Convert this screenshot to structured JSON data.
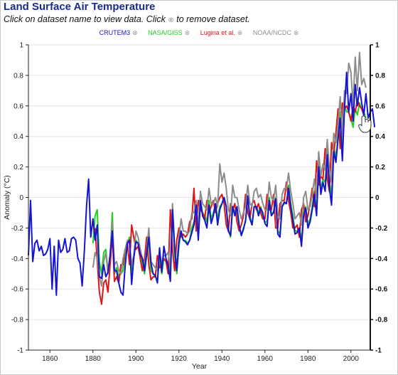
{
  "page": {
    "title": "Land Surface Air Temperature",
    "instruction_before": "Click on dataset name to view data. Click",
    "instruction_icon": "remove-dataset-icon",
    "instruction_after": "to remove dataset.",
    "remove_glyph": "⊗"
  },
  "chart_data": {
    "type": "line",
    "title": "",
    "xlabel": "Year",
    "ylabel": "Anomaly (°C)",
    "xlim": [
      1850,
      2009
    ],
    "ylim": [
      -1,
      1
    ],
    "x_ticks": [
      1860,
      1880,
      1900,
      1920,
      1940,
      1960,
      1980,
      2000
    ],
    "y_ticks_left": [
      "-1",
      "-0.8",
      "-0.6",
      "-0.4",
      "-0.2",
      "0",
      "0.2",
      "0.4",
      "0.6",
      "0.8",
      "1"
    ],
    "y_ticks_right": [
      "-1",
      "-0.8",
      "-0.6",
      "-0.4",
      "-0.2",
      "0",
      "0.2",
      "0.4",
      "0.6",
      "0.8",
      "1"
    ],
    "y_tick_values": [
      -1,
      -0.8,
      -0.6,
      -0.4,
      -0.2,
      0,
      0.2,
      0.4,
      0.6,
      0.8,
      1
    ],
    "grid": true,
    "legend_position": "top-center",
    "series": [
      {
        "name": "CRUTEM3",
        "color": "#1414d2",
        "start": 1850,
        "values": [
          -0.38,
          -0.02,
          -0.42,
          -0.3,
          -0.28,
          -0.35,
          -0.32,
          -0.38,
          -0.37,
          -0.34,
          -0.27,
          -0.6,
          -0.32,
          -0.64,
          -0.28,
          -0.36,
          -0.34,
          -0.27,
          -0.36,
          -0.35,
          -0.27,
          -0.26,
          -0.28,
          -0.4,
          -0.43,
          -0.58,
          -0.35,
          -0.06,
          0.12,
          -0.26,
          -0.14,
          -0.28,
          -0.18,
          -0.52,
          -0.53,
          -0.44,
          -0.52,
          -0.49,
          -0.38,
          -0.22,
          -0.48,
          -0.48,
          -0.56,
          -0.62,
          -0.64,
          -0.45,
          -0.3,
          -0.28,
          -0.57,
          -0.4,
          -0.29,
          -0.3,
          -0.37,
          -0.4,
          -0.48,
          -0.36,
          -0.26,
          -0.43,
          -0.5,
          -0.51,
          -0.56,
          -0.33,
          -0.49,
          -0.32,
          -0.4,
          -0.45,
          -0.55,
          -0.08,
          -0.33,
          -0.48,
          -0.29,
          -0.22,
          -0.28,
          -0.29,
          -0.31,
          -0.28,
          -0.23,
          -0.18,
          -0.05,
          -0.28,
          -0.02,
          -0.12,
          -0.15,
          -0.2,
          -0.05,
          -0.17,
          -0.12,
          -0.04,
          -0.18,
          -0.08,
          -0.04,
          0.0,
          -0.06,
          -0.22,
          -0.25,
          -0.06,
          -0.12,
          -0.06,
          -0.18,
          -0.25,
          -0.21,
          -0.15,
          0.01,
          -0.14,
          -0.18,
          -0.06,
          -0.06,
          -0.12,
          -0.07,
          -0.1,
          -0.17,
          -0.19,
          -0.02,
          -0.12,
          -0.1,
          -0.01,
          -0.24,
          -0.26,
          -0.06,
          -0.03,
          -0.04,
          0.06,
          -0.06,
          -0.15,
          -0.24,
          -0.23,
          -0.2,
          -0.32,
          -0.12,
          -0.07,
          -0.2,
          -0.16,
          -0.08,
          0.02,
          -0.12,
          0.2,
          0.02,
          0.1,
          0.04,
          0.28,
          0.06,
          -0.05,
          0.3,
          0.23,
          0.38,
          0.52,
          0.24,
          0.58,
          0.82,
          0.56,
          0.68,
          0.5,
          0.74,
          0.6,
          0.72,
          0.62,
          0.54,
          0.68,
          0.52,
          0.56,
          0.58,
          0.46
        ]
      },
      {
        "name": "NASA/GISS",
        "color": "#1fd01f",
        "start": 1880,
        "values": [
          -0.3,
          -0.12,
          -0.08,
          -0.42,
          -0.5,
          -0.36,
          -0.34,
          -0.48,
          -0.38,
          -0.1,
          -0.5,
          -0.46,
          -0.52,
          -0.5,
          -0.48,
          -0.36,
          -0.3,
          -0.26,
          -0.48,
          -0.4,
          -0.28,
          -0.3,
          -0.38,
          -0.44,
          -0.5,
          -0.38,
          -0.28,
          -0.48,
          -0.5,
          -0.52,
          -0.54,
          -0.4,
          -0.5,
          -0.4,
          -0.42,
          -0.42,
          -0.53,
          -0.1,
          -0.38,
          -0.5,
          -0.32,
          -0.22,
          -0.28,
          -0.28,
          -0.3,
          -0.28,
          -0.2,
          -0.16,
          -0.08,
          -0.24,
          -0.02,
          -0.1,
          -0.12,
          -0.16,
          -0.02,
          -0.14,
          -0.1,
          -0.04,
          -0.14,
          -0.06,
          -0.04,
          0.0,
          -0.06,
          -0.2,
          -0.26,
          -0.06,
          -0.1,
          -0.08,
          -0.2,
          -0.24,
          -0.2,
          -0.16,
          0.0,
          -0.12,
          -0.18,
          -0.06,
          -0.06,
          -0.1,
          -0.06,
          -0.12,
          -0.16,
          -0.16,
          0.0,
          -0.1,
          -0.1,
          0.0,
          -0.22,
          -0.24,
          -0.06,
          -0.04,
          -0.04,
          0.08,
          -0.04,
          -0.12,
          -0.22,
          -0.22,
          -0.2,
          -0.28,
          -0.1,
          -0.06,
          -0.18,
          -0.14,
          -0.06,
          0.04,
          -0.08,
          0.22,
          0.06,
          0.12,
          0.1,
          0.3,
          0.1,
          0.02,
          0.34,
          0.26,
          0.4,
          0.56,
          0.3,
          0.6,
          0.56,
          0.56,
          0.52,
          0.46,
          0.58,
          0.54,
          0.62,
          0.58,
          0.56,
          0.52
        ]
      },
      {
        "name": "Lugina et al.",
        "color": "#e01515",
        "start": 1881,
        "values": [
          -0.2,
          -0.42,
          -0.62,
          -0.7,
          -0.56,
          -0.54,
          -0.62,
          -0.44,
          -0.24,
          -0.55,
          -0.52,
          -0.56,
          -0.44,
          -0.44,
          -0.34,
          -0.3,
          -0.44,
          -0.18,
          -0.26,
          -0.34,
          -0.32,
          -0.4,
          -0.48,
          -0.4,
          -0.26,
          -0.44,
          -0.54,
          -0.52,
          -0.52,
          -0.38,
          -0.46,
          -0.44,
          -0.4,
          -0.42,
          -0.5,
          -0.08,
          -0.34,
          -0.48,
          -0.28,
          -0.2,
          -0.26,
          -0.24,
          -0.26,
          -0.24,
          -0.16,
          -0.14,
          0.06,
          -0.22,
          -0.02,
          -0.08,
          -0.1,
          -0.14,
          -0.02,
          -0.1,
          -0.06,
          -0.02,
          -0.1,
          -0.04,
          0.0,
          0.02,
          -0.04,
          -0.18,
          -0.22,
          -0.04,
          -0.08,
          -0.04,
          -0.16,
          -0.22,
          -0.18,
          -0.12,
          0.02,
          -0.1,
          -0.14,
          -0.04,
          -0.02,
          -0.08,
          -0.04,
          -0.1,
          -0.14,
          -0.14,
          0.02,
          -0.08,
          -0.08,
          0.02,
          -0.2,
          -0.2,
          -0.04,
          -0.02,
          -0.02,
          0.1,
          -0.02,
          -0.1,
          -0.2,
          -0.2,
          -0.18,
          -0.26,
          -0.08,
          -0.04,
          -0.16,
          -0.12,
          -0.04,
          0.06,
          -0.06,
          0.24,
          0.08,
          0.14,
          0.12,
          0.32,
          0.12,
          0.04,
          0.36,
          0.28,
          0.42,
          0.58,
          0.32,
          0.62,
          0.58,
          0.6,
          0.56,
          0.5,
          0.6,
          0.56,
          0.64,
          0.6,
          0.58,
          0.54
        ]
      },
      {
        "name": "NOAA/NCDC",
        "color": "#8c8c8c",
        "start": 1880,
        "values": [
          -0.46,
          -0.36,
          -0.4,
          -0.52,
          -0.58,
          -0.42,
          -0.36,
          -0.5,
          -0.36,
          -0.16,
          -0.44,
          -0.42,
          -0.48,
          -0.5,
          -0.4,
          -0.34,
          -0.28,
          -0.3,
          -0.44,
          -0.38,
          -0.22,
          -0.26,
          -0.34,
          -0.4,
          -0.44,
          -0.34,
          -0.2,
          -0.42,
          -0.44,
          -0.46,
          -0.48,
          -0.36,
          -0.44,
          -0.38,
          -0.38,
          -0.36,
          -0.46,
          -0.04,
          -0.32,
          -0.46,
          -0.26,
          -0.14,
          -0.22,
          -0.22,
          -0.24,
          -0.22,
          -0.1,
          -0.1,
          -0.02,
          -0.2,
          0.04,
          -0.04,
          -0.06,
          -0.08,
          0.06,
          -0.04,
          -0.04,
          0.0,
          -0.06,
          0.22,
          0.1,
          0.16,
          0.06,
          -0.08,
          -0.12,
          0.08,
          0.0,
          0.0,
          -0.08,
          -0.14,
          -0.1,
          -0.06,
          0.08,
          -0.04,
          -0.06,
          0.04,
          0.06,
          0.0,
          0.02,
          -0.04,
          -0.08,
          -0.08,
          0.1,
          0.0,
          -0.02,
          0.08,
          -0.12,
          -0.14,
          0.02,
          0.06,
          0.06,
          0.16,
          0.04,
          -0.04,
          -0.14,
          -0.12,
          -0.1,
          -0.18,
          0.0,
          0.04,
          -0.08,
          -0.06,
          0.02,
          0.12,
          0.0,
          0.3,
          0.14,
          0.22,
          0.18,
          0.38,
          0.18,
          0.1,
          0.42,
          0.36,
          0.48,
          0.66,
          0.4,
          0.7,
          0.68,
          0.88,
          0.82,
          0.6,
          0.92,
          0.7,
          0.95,
          0.74,
          0.78,
          0.72
        ]
      }
    ]
  }
}
